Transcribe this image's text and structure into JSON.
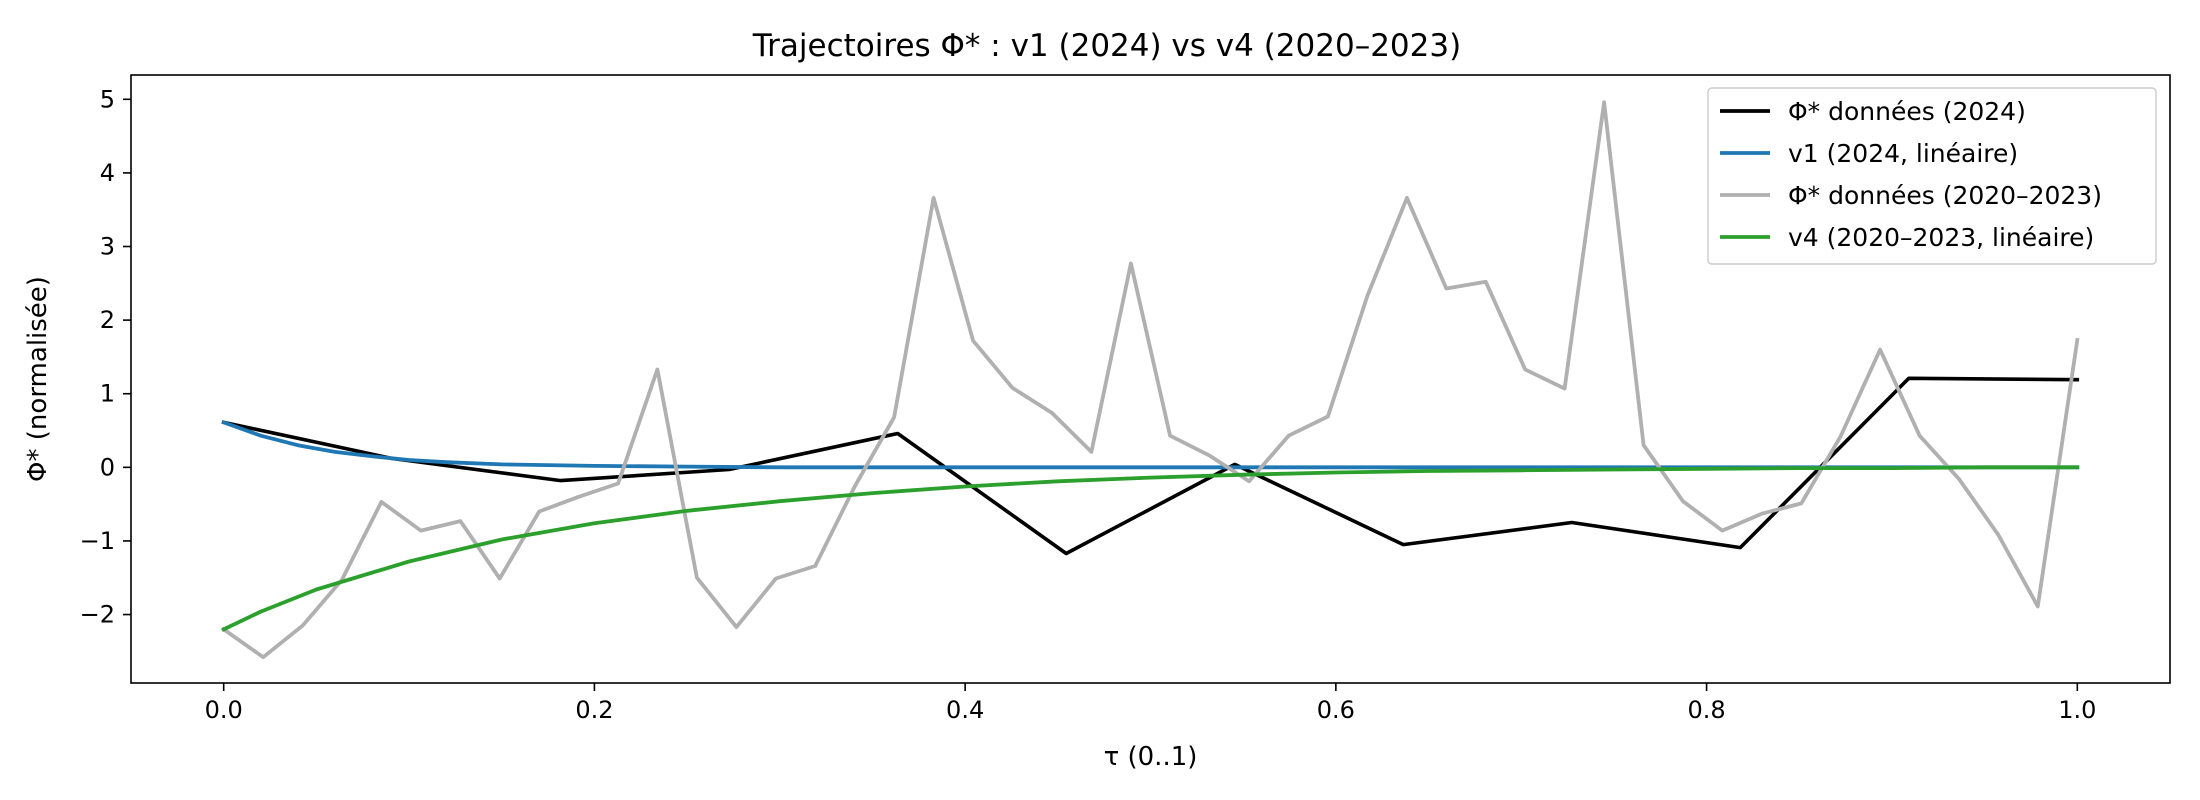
{
  "chart_data": {
    "type": "line",
    "title": "Trajectoires Φ* : v1 (2024) vs v4 (2020–2023)",
    "xlabel": "τ (0..1)",
    "ylabel": "Φ* (normalisée)",
    "xlim": [
      -0.05,
      1.05
    ],
    "ylim": [
      -2.93,
      5.33
    ],
    "xticks": [
      0.0,
      0.2,
      0.4,
      0.6,
      0.8,
      1.0
    ],
    "xtick_labels": [
      "0.0",
      "0.2",
      "0.4",
      "0.6",
      "0.8",
      "1.0"
    ],
    "yticks": [
      -2,
      -1,
      0,
      1,
      2,
      3,
      4,
      5
    ],
    "ytick_labels": [
      "−2",
      "−1",
      "0",
      "1",
      "2",
      "3",
      "4",
      "5"
    ],
    "grid": false,
    "legend_position": "top-right",
    "series": [
      {
        "name": "Φ* données (2024)",
        "color": "#000000",
        "x": [
          0.0,
          0.0909,
          0.1818,
          0.2727,
          0.3636,
          0.4545,
          0.5455,
          0.6364,
          0.7273,
          0.8182,
          0.9091,
          1.0
        ],
        "y": [
          0.61,
          0.12,
          -0.18,
          -0.03,
          0.46,
          -1.17,
          0.04,
          -1.05,
          -0.75,
          -1.09,
          1.21,
          1.19
        ]
      },
      {
        "name": "v1 (2024, linéaire)",
        "color": "#1f77b4",
        "x": [
          0.0,
          0.02,
          0.04,
          0.06,
          0.08,
          0.1,
          0.12,
          0.15,
          0.2,
          0.25,
          0.3,
          0.4,
          0.5,
          0.6,
          0.8,
          1.0
        ],
        "y": [
          0.61,
          0.43,
          0.3,
          0.21,
          0.15,
          0.1,
          0.07,
          0.04,
          0.02,
          0.01,
          0.0,
          0.0,
          0.0,
          0.0,
          0.0,
          0.0
        ]
      },
      {
        "name": "Φ* données (2020–2023)",
        "color": "#b0b0b0",
        "x": [
          0.0,
          0.0213,
          0.0426,
          0.0638,
          0.0851,
          0.1064,
          0.1277,
          0.1489,
          0.1702,
          0.1915,
          0.2128,
          0.234,
          0.2553,
          0.2766,
          0.2979,
          0.3191,
          0.3404,
          0.3617,
          0.383,
          0.4043,
          0.4255,
          0.4468,
          0.4681,
          0.4894,
          0.5106,
          0.5319,
          0.5532,
          0.5745,
          0.5957,
          0.617,
          0.6383,
          0.6596,
          0.6809,
          0.7021,
          0.7234,
          0.7447,
          0.766,
          0.7872,
          0.8085,
          0.8298,
          0.8511,
          0.8723,
          0.8936,
          0.9149,
          0.9362,
          0.9574,
          0.9787,
          1.0
        ],
        "y": [
          -2.2,
          -2.58,
          -2.15,
          -1.53,
          -0.47,
          -0.86,
          -0.73,
          -1.51,
          -0.6,
          -0.4,
          -0.22,
          1.33,
          -1.5,
          -2.17,
          -1.51,
          -1.34,
          -0.26,
          0.68,
          3.66,
          1.72,
          1.08,
          0.74,
          0.21,
          2.77,
          0.43,
          0.16,
          -0.19,
          0.43,
          0.69,
          2.33,
          3.66,
          2.43,
          2.52,
          1.33,
          1.07,
          4.96,
          0.3,
          -0.46,
          -0.86,
          -0.63,
          -0.49,
          0.42,
          1.6,
          0.43,
          -0.16,
          -0.92,
          -1.89,
          1.73
        ]
      },
      {
        "name": "v4 (2020–2023, linéaire)",
        "color": "#2ca02c",
        "x": [
          0.0,
          0.02,
          0.05,
          0.1,
          0.15,
          0.2,
          0.25,
          0.3,
          0.35,
          0.4,
          0.45,
          0.5,
          0.55,
          0.6,
          0.65,
          0.7,
          0.75,
          0.8,
          0.85,
          0.9,
          0.95,
          1.0
        ],
        "y": [
          -2.2,
          -1.96,
          -1.66,
          -1.28,
          -0.98,
          -0.76,
          -0.59,
          -0.46,
          -0.35,
          -0.26,
          -0.19,
          -0.14,
          -0.1,
          -0.07,
          -0.05,
          -0.04,
          -0.03,
          -0.02,
          -0.01,
          -0.01,
          0.0,
          0.0
        ]
      }
    ]
  }
}
